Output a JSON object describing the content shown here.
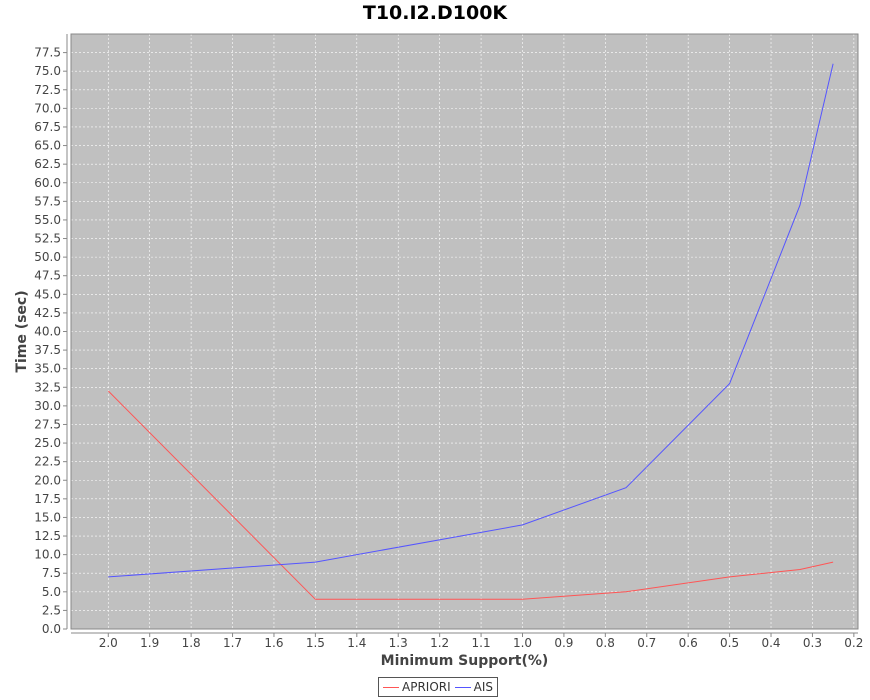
{
  "chart_data": {
    "type": "line",
    "title": "T10.I2.D100K",
    "xlabel": "Minimum Support(%)",
    "ylabel": "Time (sec)",
    "xlim": [
      2.09,
      0.19
    ],
    "ylim": [
      0,
      80
    ],
    "x_reversed": true,
    "grid": true,
    "legend_position": "bottom",
    "plot_background": "#c0c0c0",
    "x_ticks": [
      "2.0",
      "1.9",
      "1.8",
      "1.7",
      "1.6",
      "1.5",
      "1.4",
      "1.3",
      "1.2",
      "1.1",
      "1.0",
      "0.9",
      "0.8",
      "0.7",
      "0.6",
      "0.5",
      "0.4",
      "0.3",
      "0.2"
    ],
    "y_ticks": [
      "0.0",
      "2.5",
      "5.0",
      "7.5",
      "10.0",
      "12.5",
      "15.0",
      "17.5",
      "20.0",
      "22.5",
      "25.0",
      "27.5",
      "30.0",
      "32.5",
      "35.0",
      "37.5",
      "40.0",
      "42.5",
      "45.0",
      "47.5",
      "50.0",
      "52.5",
      "55.0",
      "57.5",
      "60.0",
      "62.5",
      "65.0",
      "67.5",
      "70.0",
      "72.5",
      "75.0",
      "77.5"
    ],
    "series": [
      {
        "name": "APRIORI",
        "color": "#ff5555",
        "x": [
          2.0,
          1.5,
          1.0,
          0.75,
          0.5,
          0.33,
          0.25
        ],
        "y": [
          32,
          4,
          4,
          5,
          7,
          8,
          9
        ]
      },
      {
        "name": "AIS",
        "color": "#5555ff",
        "x": [
          2.0,
          1.5,
          1.0,
          0.75,
          0.5,
          0.33,
          0.25
        ],
        "y": [
          7,
          9,
          14,
          19,
          33,
          57,
          76
        ]
      }
    ]
  }
}
